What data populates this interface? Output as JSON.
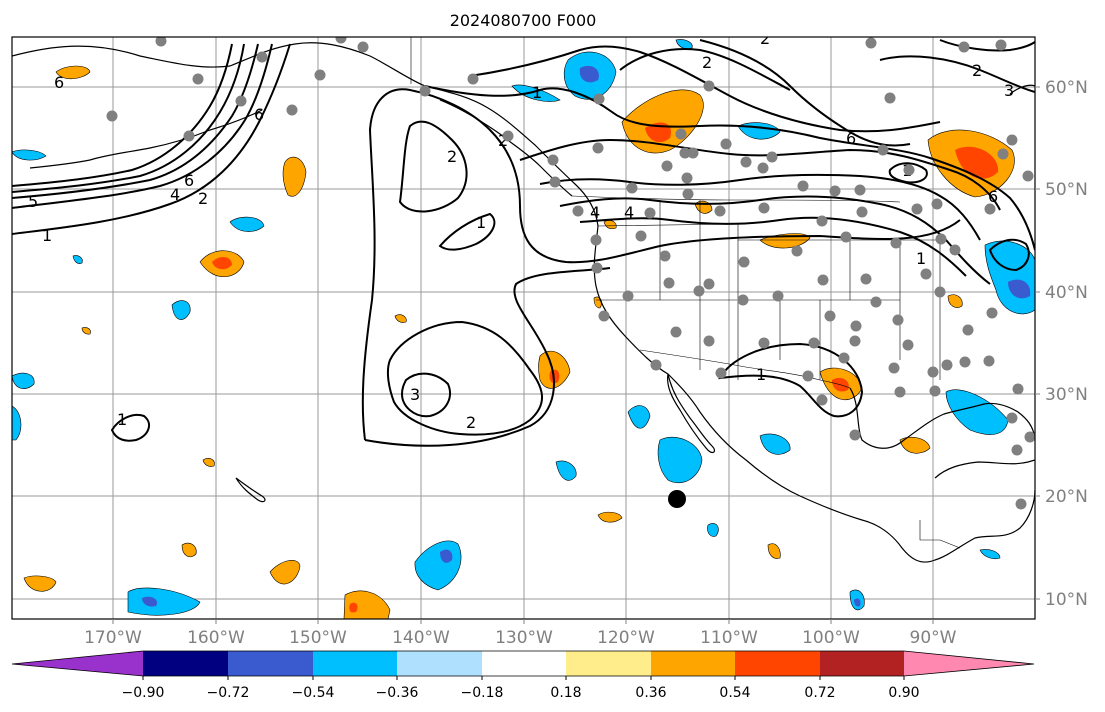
{
  "title": "2024080700 F000",
  "lon_labels": [
    "170°W",
    "160°W",
    "150°W",
    "140°W",
    "130°W",
    "120°W",
    "110°W",
    "100°W",
    "90°W"
  ],
  "lat_labels": [
    "60°N",
    "50°N",
    "40°N",
    "30°N",
    "20°N",
    "10°N"
  ],
  "colorbar": {
    "tick_labels": [
      "−0.90",
      "−0.72",
      "−0.54",
      "−0.36",
      "−0.18",
      "0.18",
      "0.36",
      "0.54",
      "0.72",
      "0.90"
    ],
    "colors": [
      "#9932cc",
      "#000080",
      "#3a5bcf",
      "#00bfff",
      "#afe1ff",
      "#ffffff",
      "#ffec8b",
      "#ffa500",
      "#ff4500",
      "#b22222",
      "#ff88b0"
    ]
  },
  "contour_labels": [
    "5",
    "6",
    "4",
    "6",
    "2",
    "1",
    "2",
    "2",
    "1",
    "3",
    "2",
    "1",
    "1",
    "2",
    "2",
    "6",
    "4",
    "1",
    "1",
    "6",
    "4",
    "2",
    "3",
    "6",
    "1"
  ],
  "colors": {
    "grid": "#9a9a9a",
    "axis_labels": "#808080",
    "station_dot": "#808080"
  }
}
